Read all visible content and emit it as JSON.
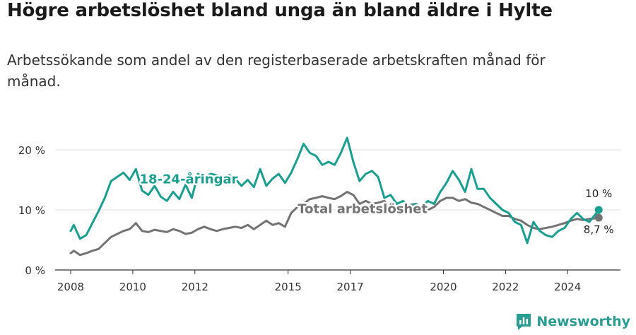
{
  "header": {
    "title": "Högre arbetslöshet bland unga än bland äldre i Hylte",
    "subtitle": "Arbetssökande som andel av den registerbaserade arbetskraften månad för månad."
  },
  "brand": {
    "name": "Newsworthy",
    "icon": "bar-chart-icon",
    "color": "#2a9d92"
  },
  "chart_data": {
    "type": "line",
    "xlim": [
      2007.5,
      2025.7
    ],
    "ylim": [
      0,
      20
    ],
    "y_ticks": [
      0,
      10,
      20
    ],
    "y_tick_labels": [
      "0 %",
      "10 %",
      "20 %"
    ],
    "x_ticks": [
      2008,
      2010,
      2012,
      2015,
      2017,
      2020,
      2022,
      2024
    ],
    "x_tick_labels": [
      "2008",
      "2010",
      "2012",
      "2015",
      "2017",
      "2020",
      "2022",
      "2024"
    ],
    "grid": true,
    "series": [
      {
        "name": "18-24-åringar",
        "color": "#1a9e8f",
        "end_label": "10 %",
        "x": [
          2008.0,
          2008.1,
          2008.3,
          2008.5,
          2008.7,
          2008.9,
          2009.1,
          2009.3,
          2009.5,
          2009.7,
          2009.9,
          2010.1,
          2010.3,
          2010.5,
          2010.7,
          2010.9,
          2011.1,
          2011.3,
          2011.5,
          2011.7,
          2011.9,
          2012.1,
          2012.3,
          2012.5,
          2012.7,
          2012.9,
          2013.1,
          2013.3,
          2013.5,
          2013.7,
          2013.9,
          2014.1,
          2014.3,
          2014.5,
          2014.7,
          2014.9,
          2015.1,
          2015.3,
          2015.5,
          2015.7,
          2015.9,
          2016.1,
          2016.3,
          2016.5,
          2016.7,
          2016.9,
          2017.1,
          2017.3,
          2017.5,
          2017.7,
          2017.9,
          2018.1,
          2018.3,
          2018.5,
          2018.7,
          2018.9,
          2019.1,
          2019.3,
          2019.5,
          2019.7,
          2019.9,
          2020.1,
          2020.3,
          2020.5,
          2020.7,
          2020.9,
          2021.1,
          2021.3,
          2021.5,
          2021.7,
          2021.9,
          2022.1,
          2022.3,
          2022.5,
          2022.7,
          2022.9,
          2023.1,
          2023.3,
          2023.5,
          2023.7,
          2023.9,
          2024.1,
          2024.3,
          2024.5,
          2024.7,
          2024.9,
          2025.0
        ],
        "values": [
          6.5,
          7.5,
          5.2,
          5.8,
          7.8,
          9.8,
          12.0,
          14.8,
          15.5,
          16.2,
          15.0,
          16.8,
          13.2,
          12.5,
          14.0,
          12.2,
          11.5,
          13.0,
          11.8,
          14.2,
          12.0,
          16.0,
          15.2,
          16.0,
          15.8,
          14.5,
          15.8,
          15.2,
          14.0,
          15.0,
          13.8,
          16.8,
          14.0,
          15.2,
          16.0,
          14.5,
          16.2,
          18.5,
          21.0,
          19.5,
          19.0,
          17.5,
          18.0,
          17.5,
          19.5,
          22.0,
          18.0,
          14.8,
          16.0,
          16.5,
          15.5,
          12.0,
          12.5,
          11.0,
          11.5,
          10.5,
          11.0,
          10.5,
          11.5,
          11.0,
          13.0,
          14.5,
          16.5,
          15.0,
          13.0,
          16.8,
          13.5,
          13.5,
          12.0,
          11.0,
          10.0,
          9.5,
          8.0,
          7.5,
          4.5,
          8.0,
          6.5,
          5.8,
          5.5,
          6.5,
          7.0,
          8.5,
          9.5,
          8.5,
          8.0,
          9.3,
          10.0
        ]
      },
      {
        "name": "Total arbetslöshet",
        "color": "#737373",
        "end_label": "8,7 %",
        "x": [
          2008.0,
          2008.1,
          2008.3,
          2008.5,
          2008.7,
          2008.9,
          2009.1,
          2009.3,
          2009.5,
          2009.7,
          2009.9,
          2010.1,
          2010.3,
          2010.5,
          2010.7,
          2010.9,
          2011.1,
          2011.3,
          2011.5,
          2011.7,
          2011.9,
          2012.1,
          2012.3,
          2012.5,
          2012.7,
          2012.9,
          2013.1,
          2013.3,
          2013.5,
          2013.7,
          2013.9,
          2014.1,
          2014.3,
          2014.5,
          2014.7,
          2014.9,
          2015.1,
          2015.3,
          2015.5,
          2015.7,
          2015.9,
          2016.1,
          2016.3,
          2016.5,
          2016.7,
          2016.9,
          2017.1,
          2017.3,
          2017.5,
          2017.7,
          2017.9,
          2018.1,
          2018.3,
          2018.5,
          2018.7,
          2018.9,
          2019.1,
          2019.3,
          2019.5,
          2019.7,
          2019.9,
          2020.1,
          2020.3,
          2020.5,
          2020.7,
          2020.9,
          2021.1,
          2021.3,
          2021.5,
          2021.7,
          2021.9,
          2022.1,
          2022.3,
          2022.5,
          2022.7,
          2022.9,
          2023.1,
          2023.3,
          2023.5,
          2023.7,
          2023.9,
          2024.1,
          2024.3,
          2024.5,
          2024.7,
          2024.9,
          2025.0
        ],
        "values": [
          2.8,
          3.2,
          2.5,
          2.8,
          3.2,
          3.5,
          4.5,
          5.5,
          6.0,
          6.5,
          6.8,
          7.8,
          6.5,
          6.3,
          6.7,
          6.5,
          6.3,
          6.8,
          6.5,
          6.0,
          6.2,
          6.8,
          7.2,
          6.8,
          6.5,
          6.8,
          7.0,
          7.2,
          7.0,
          7.5,
          6.8,
          7.5,
          8.2,
          7.5,
          7.8,
          7.2,
          9.5,
          10.5,
          11.0,
          11.8,
          12.0,
          12.3,
          12.0,
          11.8,
          12.3,
          13.0,
          12.5,
          11.0,
          11.5,
          11.0,
          11.2,
          11.5,
          10.5,
          10.0,
          10.5,
          10.8,
          11.0,
          10.5,
          10.0,
          10.5,
          11.5,
          12.0,
          12.0,
          11.5,
          11.8,
          11.2,
          11.0,
          10.5,
          10.0,
          9.5,
          9.0,
          9.0,
          8.5,
          8.2,
          7.5,
          7.0,
          6.8,
          7.0,
          7.2,
          7.5,
          7.8,
          8.2,
          8.5,
          8.3,
          8.5,
          8.6,
          8.7
        ]
      }
    ],
    "annotations": [
      {
        "text": "18-24-åringar",
        "x": 2011.8,
        "y": 14.4,
        "color": "#1a9e8f"
      },
      {
        "text": "Total arbetslöshet",
        "x": 2017.4,
        "y": 9.5,
        "color": "#737373"
      }
    ]
  }
}
